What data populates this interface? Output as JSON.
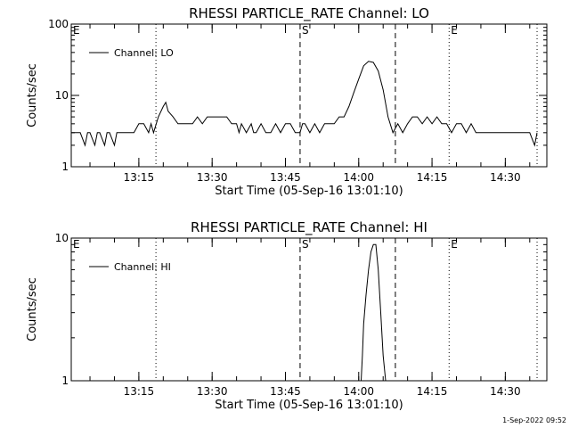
{
  "footer": {
    "timestamp": "1-Sep-2022 09:52"
  },
  "chart_data": [
    {
      "type": "line",
      "title": "RHESSI PARTICLE_RATE Channel: LO",
      "xlabel": "Start Time (05-Sep-16 13:01:10)",
      "ylabel": "Counts/sec",
      "yscale": "log",
      "xlim": [
        "13:01:10",
        "14:38:30"
      ],
      "ylim": [
        1,
        100
      ],
      "x_ticks": [
        "13:15",
        "13:30",
        "13:45",
        "14:00",
        "14:15",
        "14:30"
      ],
      "y_ticks": [
        "1",
        "10",
        "100"
      ],
      "legend": {
        "label": "Channel: LO",
        "placement": "top-left"
      },
      "markers": [
        {
          "label": "E",
          "time": "13:01:10",
          "style": "dotted"
        },
        {
          "label": "",
          "time": "13:18:30",
          "style": "dotted"
        },
        {
          "label": "S",
          "time": "13:48:00",
          "style": "dashed"
        },
        {
          "label": "",
          "time": "14:07:30",
          "style": "dashed"
        },
        {
          "label": "E",
          "time": "14:18:30",
          "style": "dotted"
        },
        {
          "label": "",
          "time": "14:36:30",
          "style": "dotted"
        }
      ],
      "series": [
        {
          "name": "Channel: LO",
          "x": [
            "13:01:10",
            "13:03:00",
            "13:04:00",
            "13:04:30",
            "13:05:00",
            "13:06:00",
            "13:06:30",
            "13:07:00",
            "13:08:00",
            "13:08:30",
            "13:09:00",
            "13:10:00",
            "13:10:30",
            "13:11:00",
            "13:12:00",
            "13:13:00",
            "13:14:00",
            "13:15:00",
            "13:16:00",
            "13:17:00",
            "13:17:30",
            "13:18:00",
            "13:19:00",
            "13:20:00",
            "13:20:30",
            "13:21:00",
            "13:22:00",
            "13:23:00",
            "13:24:00",
            "13:25:00",
            "13:26:00",
            "13:27:00",
            "13:28:00",
            "13:29:00",
            "13:30:00",
            "13:31:00",
            "13:32:00",
            "13:33:00",
            "13:34:00",
            "13:35:00",
            "13:35:30",
            "13:36:00",
            "13:37:00",
            "13:38:00",
            "13:38:30",
            "13:39:00",
            "13:40:00",
            "13:41:00",
            "13:42:00",
            "13:43:00",
            "13:44:00",
            "13:45:00",
            "13:46:00",
            "13:47:00",
            "13:48:00",
            "13:48:30",
            "13:49:00",
            "13:50:00",
            "13:51:00",
            "13:52:00",
            "13:53:00",
            "13:54:00",
            "13:55:00",
            "13:56:00",
            "13:57:00",
            "13:58:00",
            "13:59:00",
            "14:00:00",
            "14:01:00",
            "14:02:00",
            "14:03:00",
            "14:04:00",
            "14:05:00",
            "14:06:00",
            "14:07:00",
            "14:08:00",
            "14:09:00",
            "14:10:00",
            "14:11:00",
            "14:12:00",
            "14:13:00",
            "14:14:00",
            "14:15:00",
            "14:16:00",
            "14:17:00",
            "14:18:00",
            "14:19:00",
            "14:20:00",
            "14:21:00",
            "14:22:00",
            "14:23:00",
            "14:24:00",
            "14:25:00",
            "14:26:00",
            "14:27:00",
            "14:28:00",
            "14:29:00",
            "14:30:00",
            "14:31:00",
            "14:32:00",
            "14:33:00",
            "14:34:00",
            "14:35:00",
            "14:36:00",
            "14:36:30"
          ],
          "y": [
            3,
            3,
            2,
            3,
            3,
            2,
            3,
            3,
            2,
            3,
            3,
            2,
            3,
            3,
            3,
            3,
            3,
            4,
            4,
            3,
            4,
            3,
            5,
            7,
            8,
            6,
            5,
            4,
            4,
            4,
            4,
            5,
            4,
            5,
            5,
            5,
            5,
            5,
            4,
            4,
            3,
            4,
            3,
            4,
            3,
            3,
            4,
            3,
            3,
            4,
            3,
            4,
            4,
            3,
            3,
            4,
            4,
            3,
            4,
            3,
            4,
            4,
            4,
            5,
            5,
            7,
            11,
            17,
            26,
            30,
            29,
            22,
            12,
            5,
            3,
            4,
            3,
            4,
            5,
            5,
            4,
            5,
            4,
            5,
            4,
            4,
            3,
            4,
            4,
            3,
            4,
            3,
            3,
            3,
            3,
            3,
            3,
            3,
            3,
            3,
            3,
            3,
            3,
            2,
            3
          ]
        }
      ]
    },
    {
      "type": "line",
      "title": "RHESSI PARTICLE_RATE Channel: HI",
      "xlabel": "Start Time (05-Sep-16 13:01:10)",
      "ylabel": "Counts/sec",
      "yscale": "log",
      "xlim": [
        "13:01:10",
        "14:38:30"
      ],
      "ylim": [
        1,
        10
      ],
      "x_ticks": [
        "13:15",
        "13:30",
        "13:45",
        "14:00",
        "14:15",
        "14:30"
      ],
      "y_ticks": [
        "1",
        "10"
      ],
      "legend": {
        "label": "Channel: HI",
        "placement": "top-left"
      },
      "markers": [
        {
          "label": "E",
          "time": "13:01:10",
          "style": "dotted"
        },
        {
          "label": "",
          "time": "13:18:30",
          "style": "dotted"
        },
        {
          "label": "S",
          "time": "13:48:00",
          "style": "dashed"
        },
        {
          "label": "",
          "time": "14:07:30",
          "style": "dashed"
        },
        {
          "label": "E",
          "time": "14:18:30",
          "style": "dotted"
        },
        {
          "label": "",
          "time": "14:36:30",
          "style": "dotted"
        }
      ],
      "series": [
        {
          "name": "Channel: HI",
          "x": [
            "14:00:30",
            "14:00:45",
            "14:01:00",
            "14:01:30",
            "14:02:00",
            "14:02:30",
            "14:03:00",
            "14:03:30",
            "14:04:00",
            "14:04:30",
            "14:05:00",
            "14:05:30"
          ],
          "y": [
            1,
            1.5,
            2.5,
            4,
            6,
            8,
            9,
            9,
            6,
            3,
            1.5,
            1
          ]
        }
      ]
    }
  ]
}
